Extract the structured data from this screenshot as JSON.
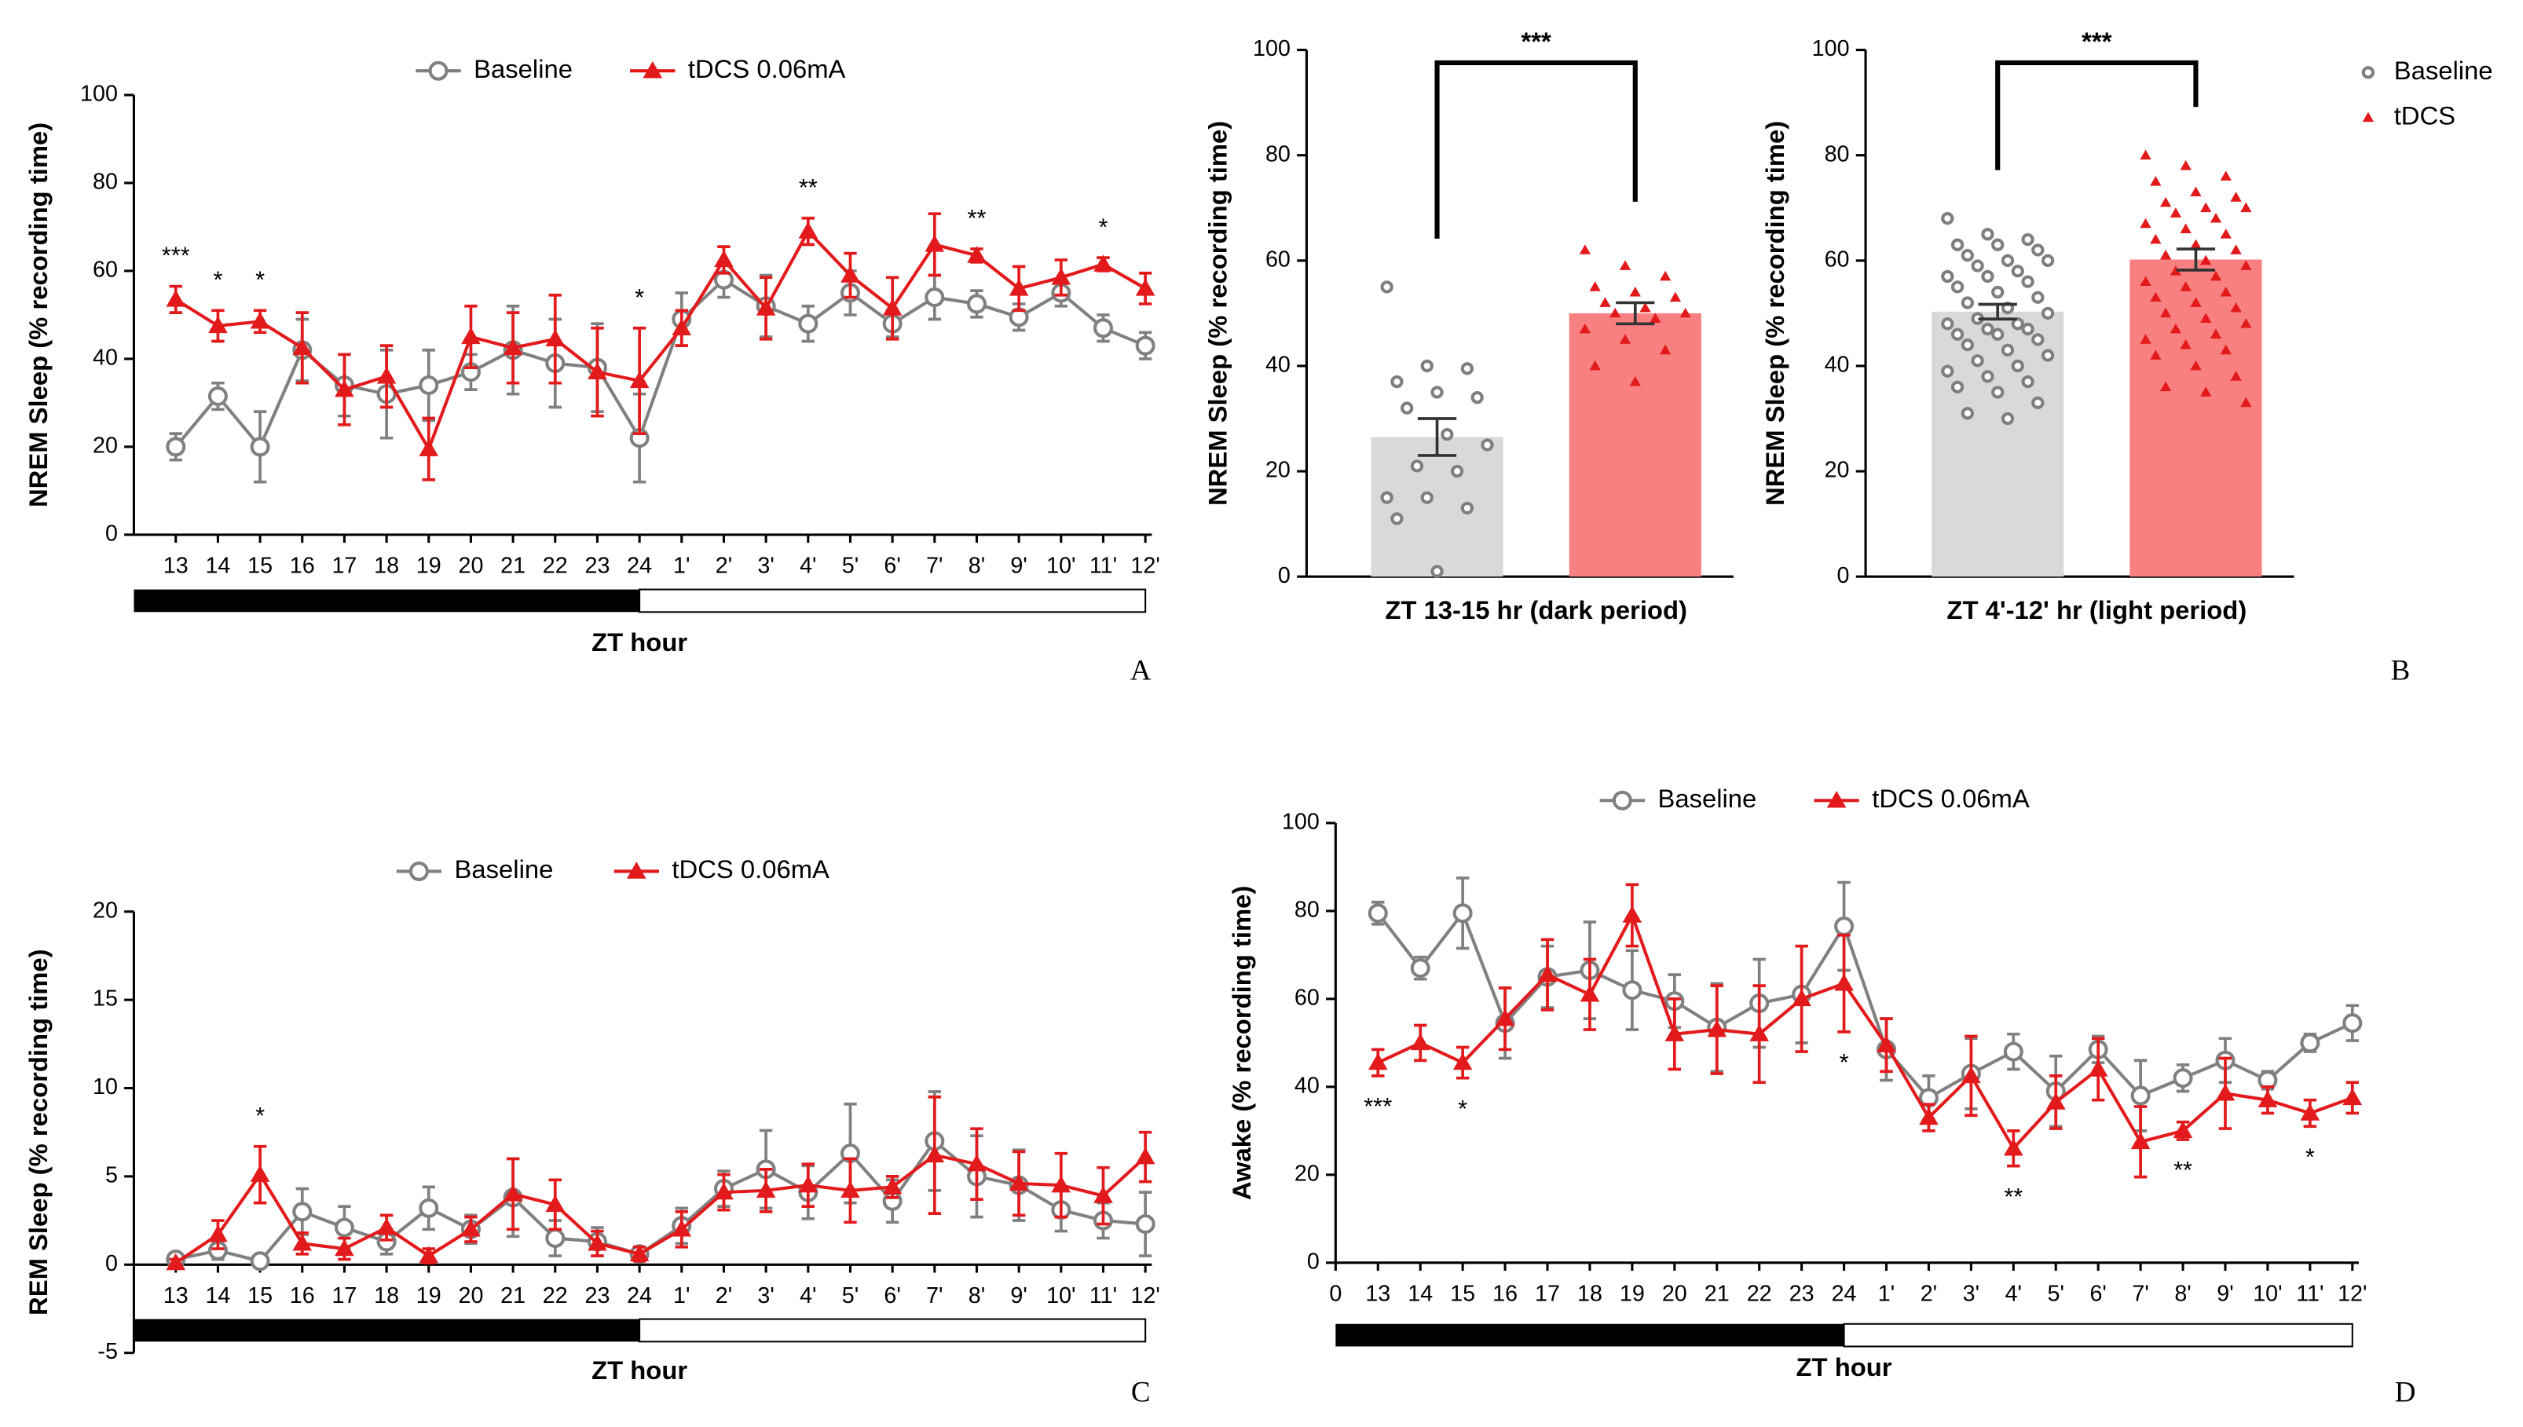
{
  "chart_data": [
    {
      "type": "line",
      "panel": "A",
      "ylabel": "NREM Sleep (% recording time)",
      "xlabel": "ZT hour",
      "categories": [
        "13",
        "14",
        "15",
        "16",
        "17",
        "18",
        "19",
        "20",
        "21",
        "22",
        "23",
        "24",
        "1'",
        "2'",
        "3'",
        "4'",
        "5'",
        "6'",
        "7'",
        "8'",
        "9'",
        "10'",
        "11'",
        "12'"
      ],
      "ylim": [
        0,
        100
      ],
      "yticks": [
        0,
        20,
        40,
        60,
        80,
        100
      ],
      "series": [
        {
          "name": "Baseline",
          "color": "#808080",
          "marker": "circle",
          "values": [
            20,
            31.5,
            20,
            42,
            34,
            32,
            34,
            37,
            42,
            39,
            38,
            22,
            49,
            58,
            52,
            48,
            55,
            48,
            54,
            52.5,
            49.5,
            55,
            47,
            43
          ],
          "errors": [
            3,
            3,
            8,
            7,
            7,
            10,
            8,
            4,
            10,
            10,
            10,
            10,
            6,
            4,
            7,
            4,
            5,
            3,
            5,
            3,
            3,
            3,
            3,
            3
          ]
        },
        {
          "name": "tDCS 0.06mA",
          "color": "#e31a1c",
          "marker": "triangle",
          "values": [
            53.5,
            47.5,
            48.5,
            42.5,
            33,
            36,
            19.5,
            45,
            42.5,
            44.5,
            37,
            35,
            47,
            62.5,
            51.5,
            69,
            59,
            51.5,
            66,
            63.5,
            56,
            58.5,
            61.5,
            56
          ],
          "errors": [
            3,
            3.5,
            2.5,
            8,
            8,
            7,
            7,
            7,
            8,
            10,
            10,
            12,
            4,
            3,
            7,
            3,
            5,
            7,
            7,
            1.5,
            5,
            4,
            1.5,
            3.5
          ]
        }
      ],
      "annotations": [
        {
          "category": "13",
          "text": "***"
        },
        {
          "category": "14",
          "text": "*"
        },
        {
          "category": "15",
          "text": "*"
        },
        {
          "category": "24",
          "text": "*"
        },
        {
          "category": "4'",
          "text": "**"
        },
        {
          "category": "8'",
          "text": "**"
        },
        {
          "category": "11'",
          "text": "*"
        }
      ]
    },
    {
      "type": "bar_scatter",
      "ylabel": "NREM Sleep (% recording time)",
      "xlabel": "ZT 13-15 hr (dark period)",
      "ylim": [
        0,
        100
      ],
      "yticks": [
        0,
        20,
        40,
        60,
        80,
        100
      ],
      "significance": "***",
      "series": [
        {
          "color": "#7f7f7f",
          "bar_color": "#d9d9d9",
          "marker": "circle",
          "mean": 26.5,
          "error": 3.5,
          "points": [
            55,
            40,
            39.5,
            37,
            35,
            34,
            32,
            27,
            25,
            21,
            20,
            15,
            15,
            13,
            11,
            1
          ]
        },
        {
          "color": "#e31a1c",
          "bar_color": "#f98080",
          "marker": "triangle",
          "mean": 50,
          "error": 2,
          "points": [
            62,
            59,
            57,
            55,
            54,
            53,
            52,
            51,
            50,
            50,
            49,
            47,
            45,
            43,
            40,
            37
          ]
        }
      ]
    },
    {
      "type": "bar_scatter",
      "panel": "B",
      "ylabel": "NREM Sleep (% recording time)",
      "xlabel": "ZT 4'-12' hr (light period)",
      "ylim": [
        0,
        100
      ],
      "yticks": [
        0,
        20,
        40,
        60,
        80,
        100
      ],
      "significance": "***",
      "legend": true,
      "series": [
        {
          "name": "Baseline",
          "color": "#7f7f7f",
          "bar_color": "#d9d9d9",
          "marker": "circle",
          "mean": 50.3,
          "error": 1.4,
          "points": [
            68,
            65,
            64,
            63,
            63,
            62,
            61,
            60,
            60,
            59,
            58,
            57,
            57,
            56,
            55,
            54,
            53,
            52,
            51,
            50,
            49,
            48,
            48,
            47,
            47,
            46,
            46,
            45,
            44,
            43,
            42,
            41,
            40,
            39,
            38,
            37,
            36,
            35,
            33,
            31,
            30
          ]
        },
        {
          "name": "tDCS",
          "color": "#e31a1c",
          "bar_color": "#f98080",
          "marker": "triangle",
          "mean": 60.2,
          "error": 2,
          "points": [
            80,
            78,
            76,
            75,
            73,
            72,
            71,
            70,
            70,
            69,
            68,
            67,
            66,
            65,
            64,
            63,
            62,
            61,
            60,
            59,
            58,
            57,
            56,
            55,
            54,
            53,
            52,
            51,
            50,
            49,
            48,
            47,
            46,
            45,
            44,
            43,
            42,
            40,
            38,
            36,
            35,
            33
          ]
        }
      ]
    },
    {
      "type": "line",
      "panel": "C",
      "ylabel": "REM Sleep (% recording time)",
      "xlabel": "ZT hour",
      "categories": [
        "13",
        "14",
        "15",
        "16",
        "17",
        "18",
        "19",
        "20",
        "21",
        "22",
        "23",
        "24",
        "1'",
        "2'",
        "3'",
        "4'",
        "5'",
        "6'",
        "7'",
        "8'",
        "9'",
        "10'",
        "11'",
        "12'"
      ],
      "ylim": [
        -5,
        20
      ],
      "yticks": [
        -5,
        0,
        5,
        10,
        15,
        20
      ],
      "series": [
        {
          "name": "Baseline",
          "color": "#808080",
          "marker": "circle",
          "values": [
            0.3,
            0.8,
            0.2,
            3,
            2.1,
            1.3,
            3.2,
            2,
            3.8,
            1.5,
            1.3,
            0.6,
            2.2,
            4.3,
            5.4,
            4.1,
            6.3,
            3.6,
            7,
            5,
            4.5,
            3.1,
            2.5,
            2.3
          ],
          "errors": [
            0.3,
            0.5,
            0.2,
            1.3,
            1.2,
            0.7,
            1.2,
            0.8,
            2.2,
            1,
            0.8,
            0.3,
            1,
            1,
            2.2,
            1.5,
            2.8,
            1.2,
            2.8,
            2.3,
            2,
            1.2,
            1,
            1.8
          ]
        },
        {
          "name": "tDCS 0.06mA",
          "color": "#e31a1c",
          "marker": "triangle",
          "values": [
            0.1,
            1.7,
            5.1,
            1.2,
            0.9,
            2.1,
            0.5,
            2,
            4,
            3.4,
            1.2,
            0.6,
            2,
            4.1,
            4.2,
            4.5,
            4.2,
            4.4,
            6.2,
            5.7,
            4.6,
            4.5,
            3.9,
            6.1
          ],
          "errors": [
            0.2,
            0.8,
            1.6,
            0.6,
            0.6,
            0.7,
            0.4,
            0.7,
            2,
            1.4,
            0.7,
            0.4,
            1,
            1,
            1.2,
            1.2,
            1.8,
            0.6,
            3.3,
            2,
            1.8,
            1.8,
            1.6,
            1.4
          ]
        }
      ],
      "annotations": [
        {
          "category": "15",
          "text": "*"
        }
      ]
    },
    {
      "type": "line",
      "panel": "D",
      "ylabel": "Awake (% recording time)",
      "xlabel": "ZT hour",
      "categories": [
        "0",
        "13",
        "14",
        "15",
        "16",
        "17",
        "18",
        "19",
        "20",
        "21",
        "22",
        "23",
        "24",
        "1'",
        "2'",
        "3'",
        "4'",
        "5'",
        "6'",
        "7'",
        "8'",
        "9'",
        "10'",
        "11'",
        "12'"
      ],
      "ylim": [
        0,
        100
      ],
      "yticks": [
        0,
        20,
        40,
        60,
        80,
        100
      ],
      "series": [
        {
          "name": "Baseline",
          "color": "#808080",
          "marker": "circle",
          "values": [
            null,
            79.5,
            67,
            79.5,
            54.5,
            65,
            66.5,
            62,
            59.5,
            53.5,
            59,
            61,
            76.5,
            48.5,
            37.5,
            43,
            48,
            39,
            48.5,
            38,
            42,
            46,
            41.5,
            50,
            54.5
          ],
          "errors": [
            null,
            2.5,
            2.5,
            8,
            8,
            7,
            11,
            9,
            6,
            10,
            10,
            11,
            10,
            7,
            5,
            8,
            4,
            8,
            3,
            8,
            3,
            5,
            2,
            2,
            4
          ]
        },
        {
          "name": "tDCS 0.06mA",
          "color": "#e31a1c",
          "marker": "triangle",
          "values": [
            null,
            45.5,
            50,
            45.5,
            55.5,
            65.5,
            61,
            79,
            52,
            53,
            52,
            60,
            63.5,
            49.5,
            33,
            42.5,
            26,
            36.5,
            44,
            27.5,
            30,
            38.5,
            37,
            34,
            37.5
          ],
          "errors": [
            null,
            3,
            4,
            3.5,
            7,
            8,
            8,
            7,
            8,
            10,
            11,
            12,
            11,
            6,
            3,
            9,
            4,
            6,
            7,
            8,
            2,
            8,
            3,
            3,
            3.5
          ]
        }
      ],
      "annotations": [
        {
          "category": "13",
          "text": "***"
        },
        {
          "category": "15",
          "text": "*"
        },
        {
          "category": "24",
          "text": "*"
        },
        {
          "category": "4'",
          "text": "**"
        },
        {
          "category": "8'",
          "text": "**"
        },
        {
          "category": "11'",
          "text": "*"
        }
      ]
    }
  ]
}
